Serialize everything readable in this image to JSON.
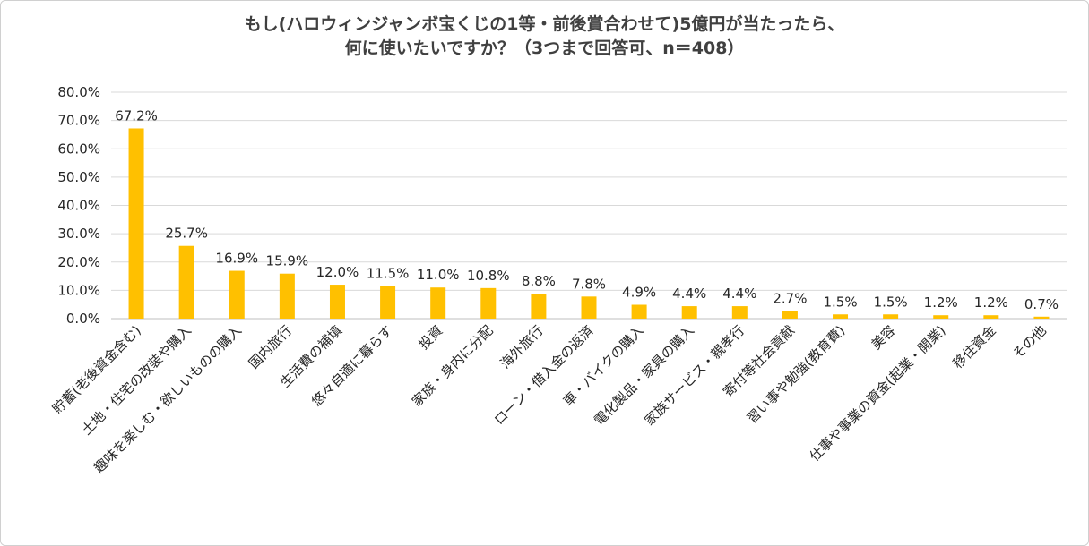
{
  "chart_data": {
    "type": "bar",
    "title_line1": "もし(ハロウィンジャンボ宝くじの1等・前後賞合わせて)5億円が当たったら、",
    "title_line2": "何に使いたいですか？（3つまで回答可、n＝408）",
    "categories": [
      "貯蓄(老後資金含む)",
      "土地・住宅の改装や購入",
      "趣味を楽しむ・欲しいものの購入",
      "国内旅行",
      "生活費の補填",
      "悠々自適に暮らす",
      "投資",
      "家族・身内に分配",
      "海外旅行",
      "ローン・借入金の返済",
      "車・バイクの購入",
      "電化製品・家具の購入",
      "家族サービス・親孝行",
      "寄付等社会貢献",
      "習い事や勉強(教育費)",
      "美容",
      "仕事や事業の資金(起業・開業)",
      "移住資金",
      "その他"
    ],
    "values": [
      67.2,
      25.7,
      16.9,
      15.9,
      12.0,
      11.5,
      11.0,
      10.8,
      8.8,
      7.8,
      4.9,
      4.4,
      4.4,
      2.7,
      1.5,
      1.5,
      1.2,
      1.2,
      0.7
    ],
    "value_labels": [
      "67.2%",
      "25.7%",
      "16.9%",
      "15.9%",
      "12.0%",
      "11.5%",
      "11.0%",
      "10.8%",
      "8.8%",
      "7.8%",
      "4.9%",
      "4.4%",
      "4.4%",
      "2.7%",
      "1.5%",
      "1.5%",
      "1.2%",
      "1.2%",
      "0.7%"
    ],
    "y_ticks": [
      "0.0%",
      "10.0%",
      "20.0%",
      "30.0%",
      "40.0%",
      "50.0%",
      "60.0%",
      "70.0%",
      "80.0%"
    ],
    "ylim": [
      0,
      80
    ],
    "grid": true,
    "bar_color": "#FFC000",
    "grid_color": "#D9D9D9"
  }
}
